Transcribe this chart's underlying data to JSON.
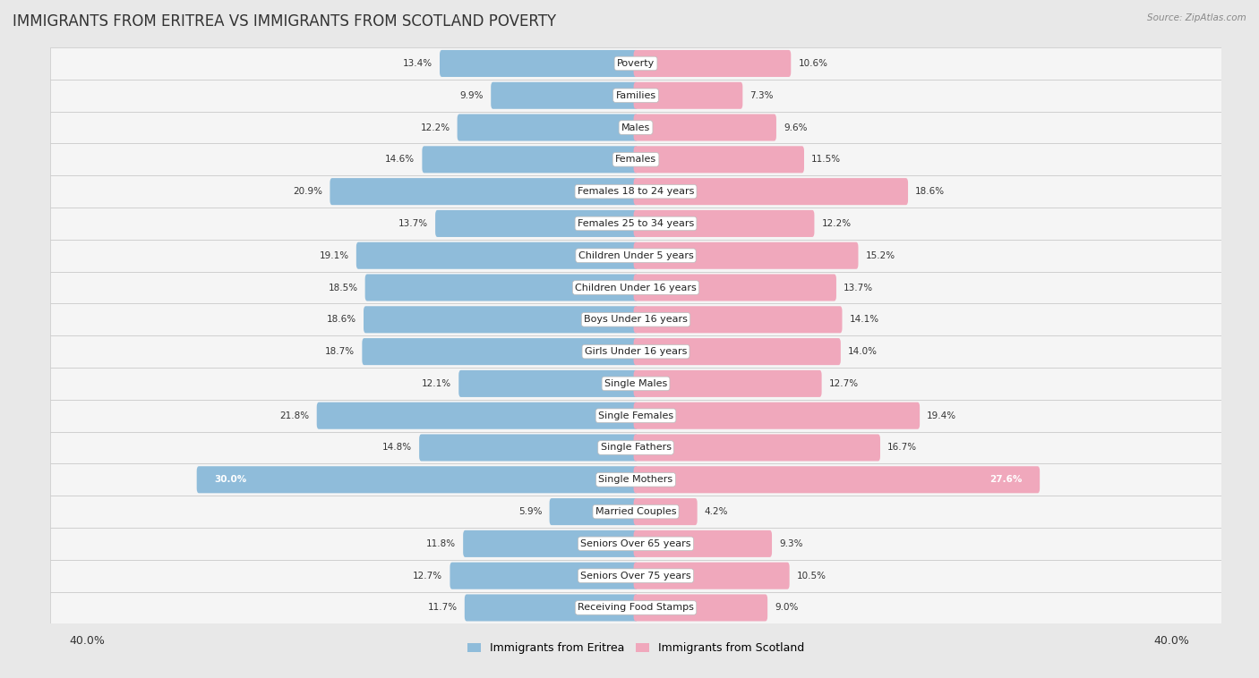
{
  "title": "IMMIGRANTS FROM ERITREA VS IMMIGRANTS FROM SCOTLAND POVERTY",
  "source": "Source: ZipAtlas.com",
  "categories": [
    "Poverty",
    "Families",
    "Males",
    "Females",
    "Females 18 to 24 years",
    "Females 25 to 34 years",
    "Children Under 5 years",
    "Children Under 16 years",
    "Boys Under 16 years",
    "Girls Under 16 years",
    "Single Males",
    "Single Females",
    "Single Fathers",
    "Single Mothers",
    "Married Couples",
    "Seniors Over 65 years",
    "Seniors Over 75 years",
    "Receiving Food Stamps"
  ],
  "eritrea_values": [
    13.4,
    9.9,
    12.2,
    14.6,
    20.9,
    13.7,
    19.1,
    18.5,
    18.6,
    18.7,
    12.1,
    21.8,
    14.8,
    30.0,
    5.9,
    11.8,
    12.7,
    11.7
  ],
  "scotland_values": [
    10.6,
    7.3,
    9.6,
    11.5,
    18.6,
    12.2,
    15.2,
    13.7,
    14.1,
    14.0,
    12.7,
    19.4,
    16.7,
    27.6,
    4.2,
    9.3,
    10.5,
    9.0
  ],
  "eritrea_color": "#8fbcda",
  "scotland_color": "#f0a8bc",
  "axis_max": 40.0,
  "background_color": "#e8e8e8",
  "row_bg_color": "#f5f5f5",
  "row_alt_color": "#ebebeb",
  "title_fontsize": 12,
  "label_fontsize": 8,
  "value_fontsize": 7.5,
  "legend_label_eritrea": "Immigrants from Eritrea",
  "legend_label_scotland": "Immigrants from Scotland"
}
